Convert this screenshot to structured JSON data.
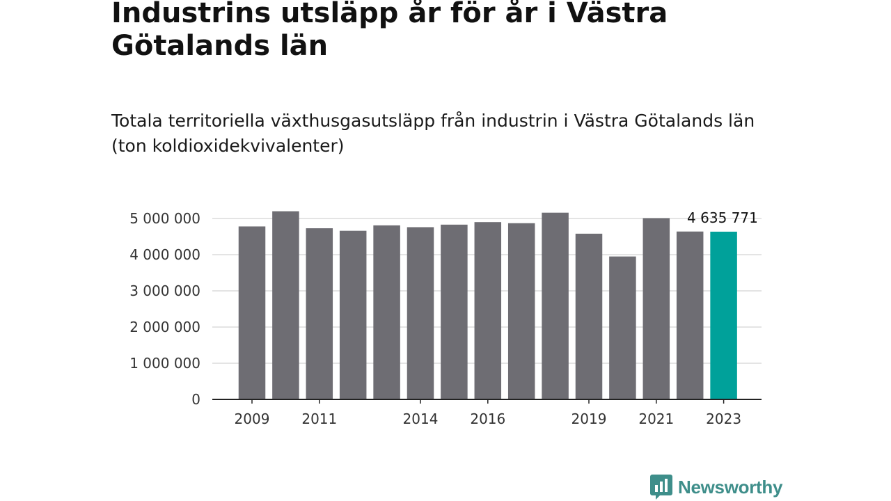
{
  "title": "Industrins utsläpp år för år i Västra Götalands län",
  "subtitle": "Totala territoriella växthusgasutsläpp från industrin i Västra Götalands län (ton koldioxidekvivalenter)",
  "brand": {
    "name": "Newsworthy",
    "color": "#3e8e8a",
    "icon": "bar-chart-speech-bubble-icon"
  },
  "chart_data": {
    "type": "bar",
    "categories": [
      "2009",
      "2010",
      "2011",
      "2012",
      "2013",
      "2014",
      "2015",
      "2016",
      "2017",
      "2018",
      "2019",
      "2020",
      "2021",
      "2022",
      "2023"
    ],
    "x_tick_labels": [
      "2009",
      "",
      "2011",
      "",
      "",
      "2014",
      "",
      "2016",
      "",
      "",
      "2019",
      "",
      "2021",
      "",
      "2023"
    ],
    "values": [
      4780000,
      5200000,
      4730000,
      4660000,
      4810000,
      4760000,
      4830000,
      4900000,
      4870000,
      5160000,
      4580000,
      3950000,
      5010000,
      4640000,
      4635771
    ],
    "ylim": [
      0,
      5200000
    ],
    "y_ticks": [
      0,
      1000000,
      2000000,
      3000000,
      4000000,
      5000000
    ],
    "y_tick_labels": [
      "0",
      "1 000 000",
      "2 000 000",
      "3 000 000",
      "4 000 000",
      "5 000 000"
    ],
    "highlight_index": 14,
    "highlight_label": "4 635 771",
    "bar_color": "#6e6d73",
    "highlight_color": "#00a19a",
    "grid": true,
    "xlabel": "",
    "ylabel": ""
  }
}
